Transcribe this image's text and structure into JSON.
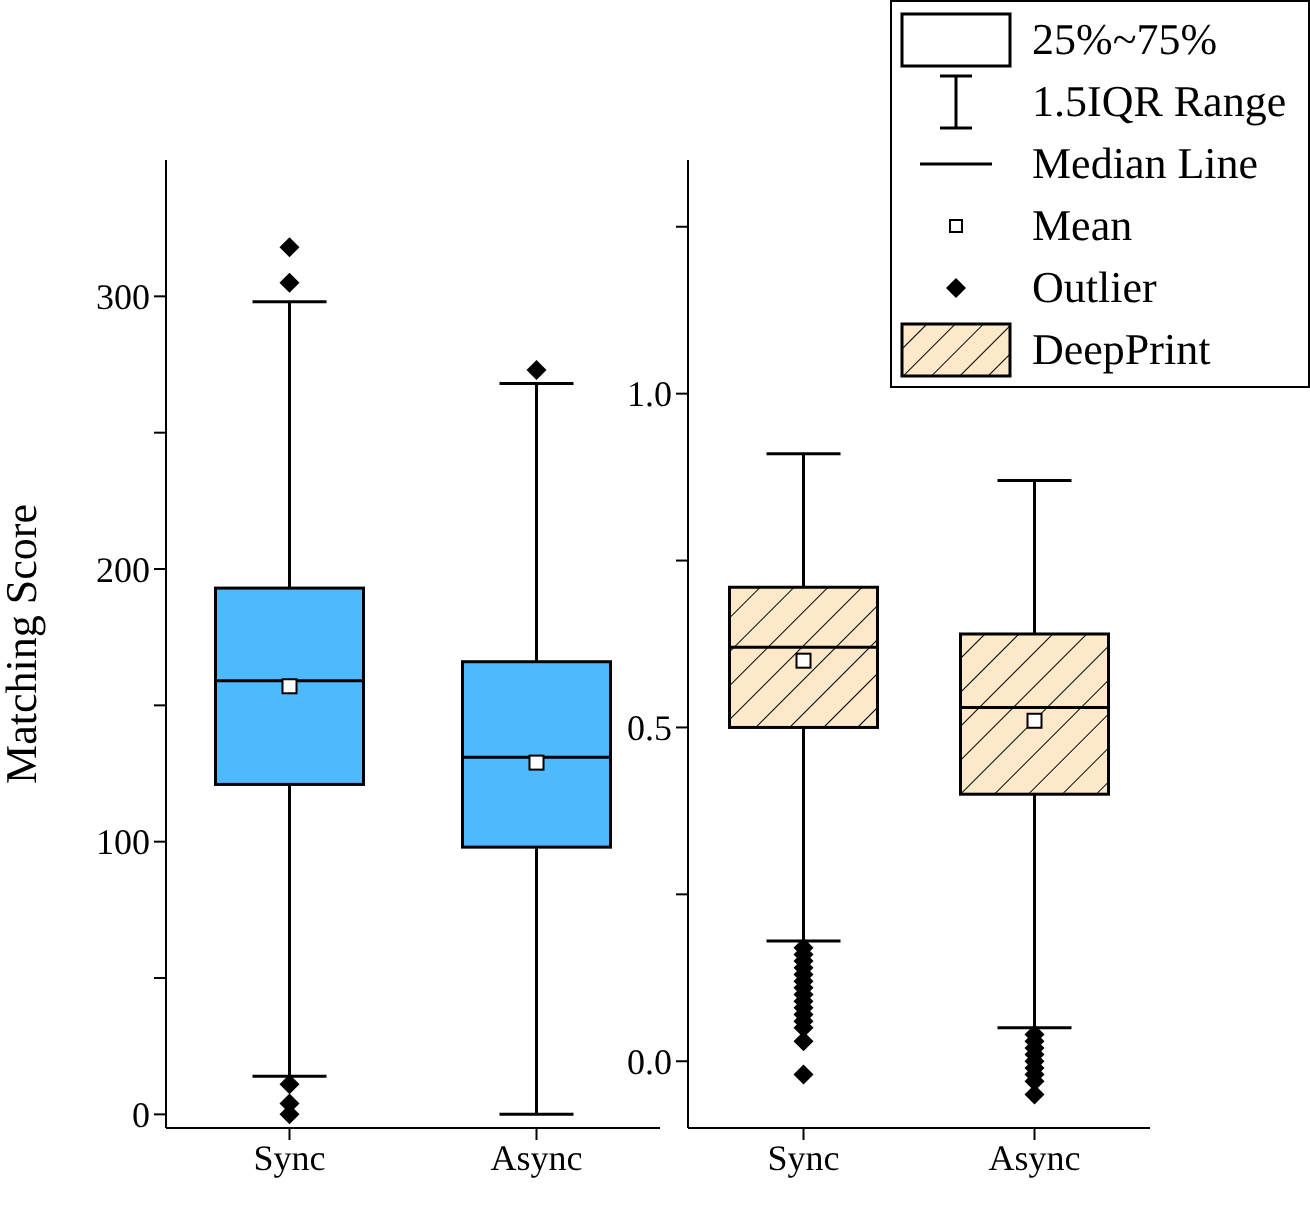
{
  "chart_data": [
    {
      "type": "box",
      "categories": [
        "Sync",
        "Async"
      ],
      "ylabel": "Matching Score",
      "ylim": [
        -5,
        350
      ],
      "yticks": [
        0,
        {
          "value": 50,
          "label": null
        },
        100,
        {
          "value": 150,
          "label": null
        },
        200,
        {
          "value": 250,
          "label": null
        },
        300
      ],
      "series": [
        {
          "color": "#4fb9fe",
          "boxes": [
            {
              "low": 14,
              "q1": 121,
              "median": 159,
              "q3": 193,
              "high": 298,
              "mean": 157,
              "outliers": [
                318,
                305,
                11,
                4,
                0
              ]
            },
            {
              "low": 0,
              "q1": 98,
              "median": 131,
              "q3": 166,
              "high": 268,
              "mean": 129,
              "outliers": [
                273
              ]
            }
          ]
        }
      ]
    },
    {
      "type": "box",
      "categories": [
        "Sync",
        "Async"
      ],
      "ylim": [
        -0.1,
        1.35
      ],
      "yticks": [
        {
          "value": 0,
          "label": "0.0"
        },
        {
          "value": 0.25,
          "label": null
        },
        0.5,
        {
          "value": 0.75,
          "label": null
        },
        {
          "value": 1,
          "label": "1.0"
        },
        {
          "value": 1.25,
          "label": null
        }
      ],
      "legend": "top right",
      "annotations": [
        "25%~75%",
        "1.5IQR Range",
        "Median Line",
        "Mean",
        "Outlier"
      ],
      "series": [
        {
          "name": "DeepPrint",
          "color": "#fde9c9",
          "boxes": [
            {
              "low": 0.18,
              "q1": 0.5,
              "median": 0.62,
              "q3": 0.71,
              "high": 0.91,
              "mean": 0.6,
              "outliers": [
                0.17,
                0.16,
                0.15,
                0.14,
                0.13,
                0.12,
                0.11,
                0.1,
                0.09,
                0.08,
                0.07,
                0.06,
                0.05,
                0.03,
                -0.02
              ]
            },
            {
              "low": 0.05,
              "q1": 0.4,
              "median": 0.53,
              "q3": 0.64,
              "high": 0.87,
              "mean": 0.51,
              "outliers": [
                0.04,
                0.03,
                0.02,
                0.01,
                0,
                -0.01,
                -0.02,
                -0.03,
                -0.05
              ]
            }
          ]
        }
      ]
    }
  ]
}
